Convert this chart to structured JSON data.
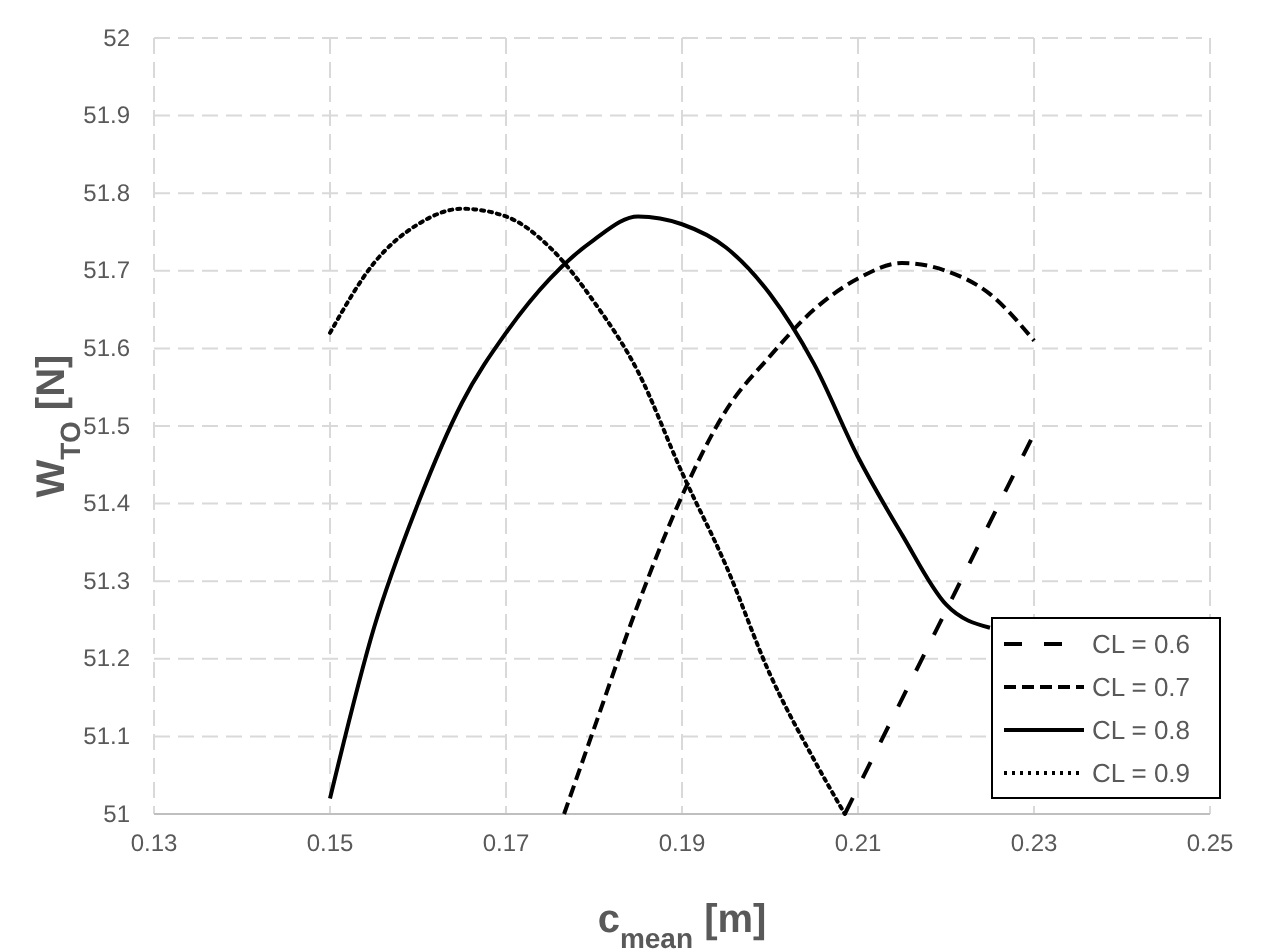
{
  "chart_data": {
    "type": "line",
    "xlabel": "c$_{mean}$ [m]",
    "ylabel": "W$_{TO}$ [N]",
    "xlim": [
      0.13,
      0.25
    ],
    "xticks": [
      0.13,
      0.15,
      0.17,
      0.19,
      0.21,
      0.23,
      0.25
    ],
    "ylim": [
      51,
      52
    ],
    "yticks": [
      51,
      51.1,
      51.2,
      51.3,
      51.4,
      51.5,
      51.6,
      51.7,
      51.8,
      51.9,
      52
    ],
    "grid": true,
    "legend": "bottom right",
    "marker": "none",
    "series": [
      {
        "name": "CL = 0.6",
        "color": "#000000",
        "line_style": "longdash",
        "x": [
          0.2085,
          0.23
        ],
        "values": [
          51.0,
          51.49
        ]
      },
      {
        "name": "CL = 0.7",
        "color": "#000000",
        "line_style": "dashed",
        "x": [
          0.1766,
          0.18,
          0.185,
          0.19,
          0.195,
          0.2,
          0.205,
          0.21,
          0.215,
          0.22,
          0.225,
          0.23
        ],
        "values": [
          51.0,
          51.11,
          51.27,
          51.41,
          51.52,
          51.59,
          51.65,
          51.69,
          51.71,
          51.7,
          51.67,
          51.61
        ]
      },
      {
        "name": "CL = 0.8",
        "color": "#000000",
        "line_style": "solid",
        "x": [
          0.15,
          0.155,
          0.16,
          0.165,
          0.17,
          0.175,
          0.18,
          0.185,
          0.19,
          0.195,
          0.2,
          0.205,
          0.21,
          0.215,
          0.22,
          0.225
        ],
        "values": [
          51.02,
          51.24,
          51.4,
          51.53,
          51.62,
          51.69,
          51.74,
          51.77,
          51.76,
          51.73,
          51.67,
          51.58,
          51.46,
          51.36,
          51.27,
          51.24
        ]
      },
      {
        "name": "CL = 0.9",
        "color": "#000000",
        "line_style": "dotted",
        "x": [
          0.15,
          0.155,
          0.16,
          0.165,
          0.17,
          0.175,
          0.18,
          0.185,
          0.19,
          0.195,
          0.2,
          0.205,
          0.2085
        ],
        "values": [
          51.62,
          51.71,
          51.76,
          51.78,
          51.77,
          51.73,
          51.66,
          51.57,
          51.44,
          51.32,
          51.18,
          51.07,
          51.0
        ]
      }
    ]
  }
}
